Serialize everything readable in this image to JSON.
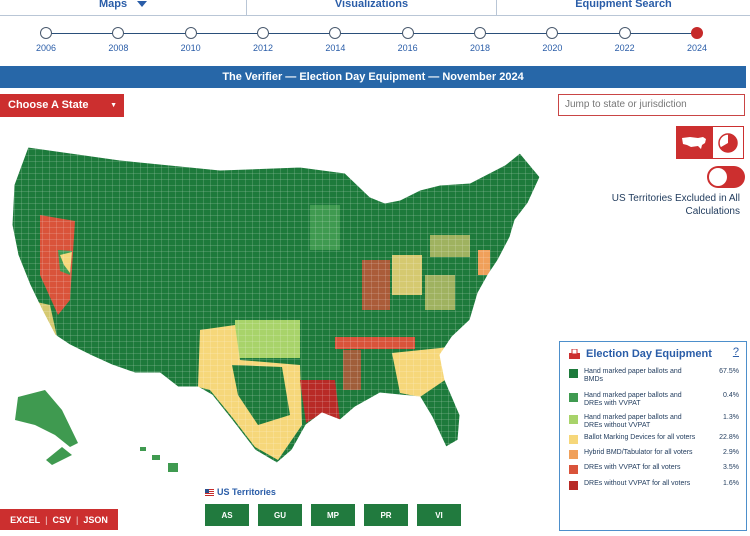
{
  "nav": {
    "tabs": [
      {
        "label": "Maps",
        "has_dropdown": true
      },
      {
        "label": "Visualizations",
        "has_dropdown": false
      },
      {
        "label": "Equipment Search",
        "has_dropdown": false
      }
    ]
  },
  "timeline": {
    "years": [
      "2006",
      "2008",
      "2010",
      "2012",
      "2014",
      "2016",
      "2018",
      "2020",
      "2022",
      "2024"
    ],
    "active_year": "2024",
    "active_color": "#c62a2a"
  },
  "title_bar": {
    "text": "The Verifier — Election Day Equipment — November 2024",
    "color": "#2767a8"
  },
  "state_select": {
    "label": "Choose A State",
    "chevron_icon": "chevron-down-icon"
  },
  "jump_search": {
    "placeholder": "Jump to state or jurisdiction"
  },
  "view_toggle": {
    "map_icon": "us-map-icon",
    "chart_icon": "pie-chart-icon",
    "selected": "map"
  },
  "territories_toggle": {
    "label": "US Territories Excluded in All Calculations",
    "on": true
  },
  "legend": {
    "title": "Election Day Equipment",
    "title_icon": "ballot-box-icon",
    "help": "?",
    "items": [
      {
        "label": "Hand marked paper ballots and BMDs",
        "pct": "67.5%",
        "color": "#1d7a3b"
      },
      {
        "label": "Hand marked paper ballots and DREs with VVPAT",
        "pct": "0.4%",
        "color": "#3f9a50"
      },
      {
        "label": "Hand marked paper ballots and DREs without VVPAT",
        "pct": "1.3%",
        "color": "#a8d36a"
      },
      {
        "label": "Ballot Marking Devices for all voters",
        "pct": "22.8%",
        "color": "#f6d77a"
      },
      {
        "label": "Hybrid BMD/Tabulator for all voters",
        "pct": "2.9%",
        "color": "#f0a05a"
      },
      {
        "label": "DREs with VVPAT for all voters",
        "pct": "3.5%",
        "color": "#d9533a"
      },
      {
        "label": "DREs without VVPAT for all voters",
        "pct": "1.6%",
        "color": "#b82a26"
      }
    ]
  },
  "territories": {
    "label": "US Territories",
    "buttons": [
      "AS",
      "GU",
      "MP",
      "PR",
      "VI"
    ]
  },
  "downloads": {
    "excel": "EXCEL",
    "csv": "CSV",
    "json": "JSON"
  }
}
